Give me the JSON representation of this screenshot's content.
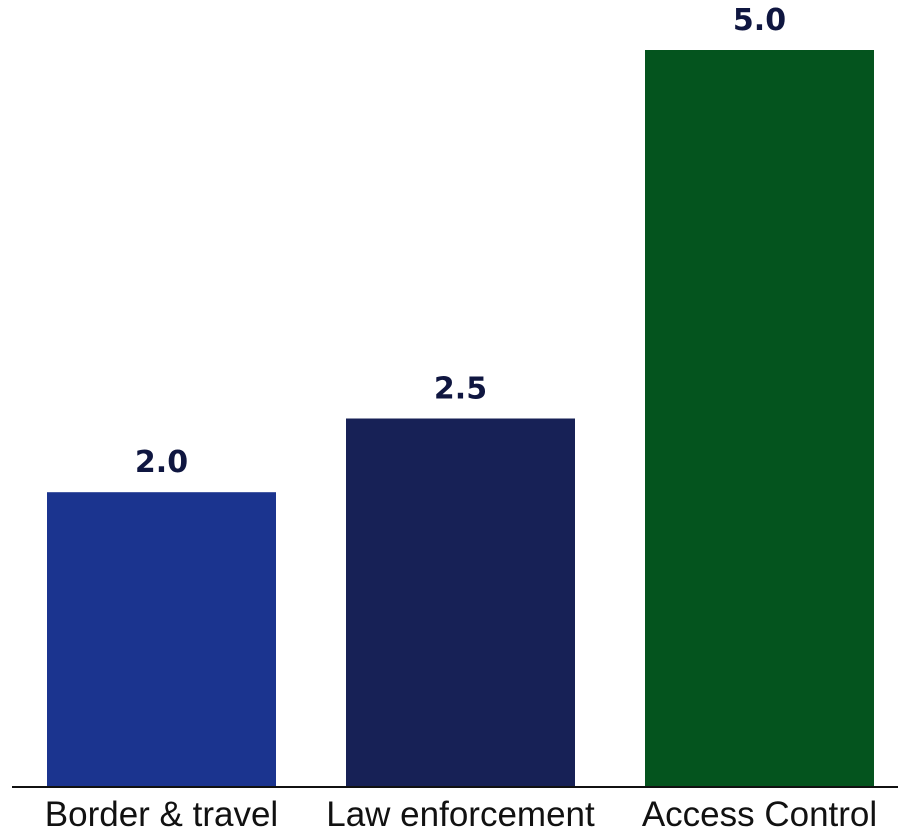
{
  "chart_data": {
    "type": "bar",
    "categories": [
      "Border & travel",
      "Law enforcement",
      "Access Control"
    ],
    "values": [
      2.0,
      2.5,
      5.0
    ],
    "value_labels": [
      "2.0",
      "2.5",
      "5.0"
    ],
    "colors": [
      "#1b348f",
      "#172156",
      "#04541e"
    ],
    "title": "",
    "xlabel": "",
    "ylabel": "",
    "ylim": [
      0,
      5.0
    ],
    "grid": false,
    "legend": "none"
  }
}
